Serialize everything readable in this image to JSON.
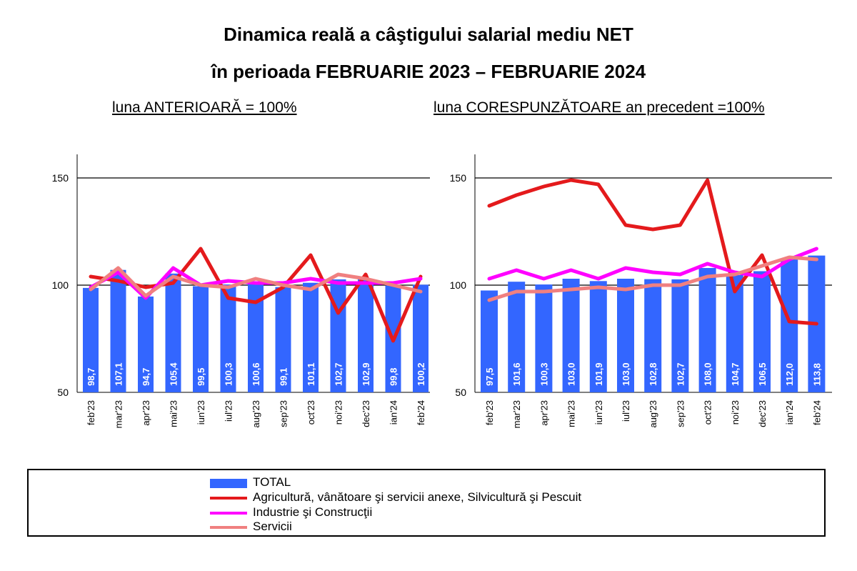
{
  "title_line1": "Dinamica reală a câştigului salarial mediu NET",
  "title_line2": "în perioada FEBRUARIE 2023 – FEBRUARIE 2024",
  "chart_data": [
    {
      "type": "bar",
      "title": "luna ANTERIOARĂ = 100%",
      "categories": [
        "feb'23",
        "mar'23",
        "apr'23",
        "mai'23",
        "iun'23",
        "iul'23",
        "aug'23",
        "sep'23",
        "oct'23",
        "noi'23",
        "dec'23",
        "ian'24",
        "feb'24"
      ],
      "ylim": [
        50,
        150
      ],
      "yticks": [
        50,
        100,
        150
      ],
      "grid": true,
      "series": [
        {
          "name": "TOTAL",
          "kind": "bar",
          "color": "#3366ff",
          "values": [
            98.7,
            107.1,
            94.7,
            105.4,
            99.5,
            100.3,
            100.6,
            99.1,
            101.1,
            102.7,
            102.9,
            99.8,
            100.2
          ]
        },
        {
          "name": "Agricultură, vânătoare şi servicii anexe, Silvicultură şi Pescuit",
          "kind": "line",
          "color": "#e41a1c",
          "values": [
            104,
            102,
            99,
            101,
            117,
            94,
            92,
            99,
            114,
            87,
            105,
            74,
            104
          ]
        },
        {
          "name": "Industrie şi Construcţii",
          "kind": "line",
          "color": "#ff00ff",
          "values": [
            99,
            106,
            94,
            108,
            100,
            102,
            101,
            101,
            103,
            101,
            101,
            101,
            103
          ]
        },
        {
          "name": "Servicii",
          "kind": "line",
          "color": "#f08080",
          "values": [
            98,
            108,
            95,
            104,
            100,
            99,
            103,
            100,
            98,
            105,
            103,
            100,
            97
          ]
        }
      ]
    },
    {
      "type": "bar",
      "title": "luna CORESPUNZĂTOARE an precedent =100%",
      "categories": [
        "feb'23",
        "mar'23",
        "apr'23",
        "mai'23",
        "iun'23",
        "iul'23",
        "aug'23",
        "sep'23",
        "oct'23",
        "noi'23",
        "dec'23",
        "ian'24",
        "feb'24"
      ],
      "ylim": [
        50,
        150
      ],
      "yticks": [
        50,
        100,
        150
      ],
      "grid": true,
      "series": [
        {
          "name": "TOTAL",
          "kind": "bar",
          "color": "#3366ff",
          "values": [
            97.5,
            101.6,
            100.3,
            103.0,
            101.9,
            103.0,
            102.8,
            102.7,
            108.0,
            104.7,
            106.5,
            112.0,
            113.8
          ]
        },
        {
          "name": "Agricultură, vânătoare şi servicii anexe, Silvicultură şi Pescuit",
          "kind": "line",
          "color": "#e41a1c",
          "values": [
            137,
            142,
            146,
            149,
            147,
            128,
            126,
            128,
            149,
            97,
            114,
            83,
            82
          ]
        },
        {
          "name": "Industrie şi Construcţii",
          "kind": "line",
          "color": "#ff00ff",
          "values": [
            103,
            107,
            103,
            107,
            103,
            108,
            106,
            105,
            110,
            106,
            104,
            112,
            117
          ]
        },
        {
          "name": "Servicii",
          "kind": "line",
          "color": "#f08080",
          "values": [
            93,
            97,
            97,
            98,
            99,
            98,
            100,
            100,
            104,
            105,
            109,
            113,
            112
          ]
        }
      ]
    }
  ],
  "legend": [
    {
      "label": "TOTAL",
      "style": "bar",
      "color": "#3366ff"
    },
    {
      "label": "Agricultură, vânătoare şi servicii anexe, Silvicultură şi Pescuit",
      "style": "line",
      "color": "#e41a1c"
    },
    {
      "label": "Industrie şi Construcţii",
      "style": "line",
      "color": "#ff00ff"
    },
    {
      "label": "Servicii",
      "style": "line",
      "color": "#f08080"
    }
  ]
}
